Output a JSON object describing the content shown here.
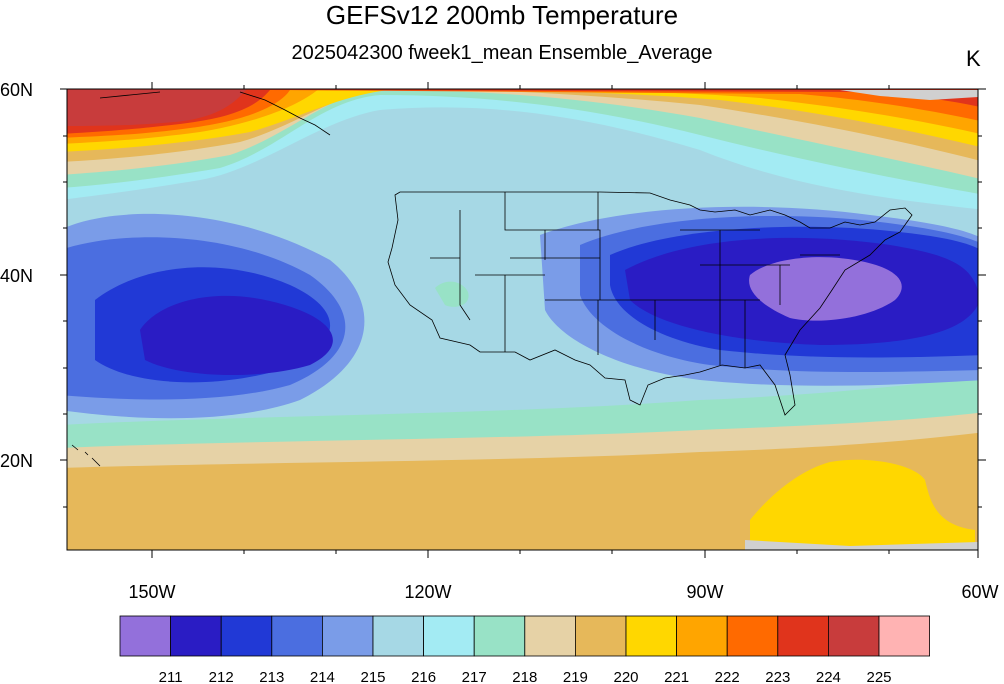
{
  "title": "GEFSv12 200mb Temperature",
  "subtitle": "2025042300 fweek1_mean Ensemble_Average",
  "units": "K",
  "lat_labels": [
    "60N",
    "40N",
    "20N"
  ],
  "lon_labels": [
    "150W",
    "120W",
    "90W",
    "60W"
  ],
  "colorbar": {
    "levels": [
      "211",
      "212",
      "213",
      "214",
      "215",
      "216",
      "217",
      "218",
      "219",
      "220",
      "221",
      "222",
      "223",
      "224",
      "225"
    ],
    "colors": [
      "#9370db",
      "#2a1cc4",
      "#2139d6",
      "#4b6ee0",
      "#7a9ce8",
      "#a6d8e5",
      "#a3ebf3",
      "#98e2c6",
      "#e6d2a6",
      "#e6b85a",
      "#ffd700",
      "#ffa500",
      "#ff6a00",
      "#e0341c",
      "#c83c3c",
      "#ffb3b3"
    ]
  },
  "map_colors": {
    "land": "#d0d0d0",
    "border": "#000000"
  }
}
